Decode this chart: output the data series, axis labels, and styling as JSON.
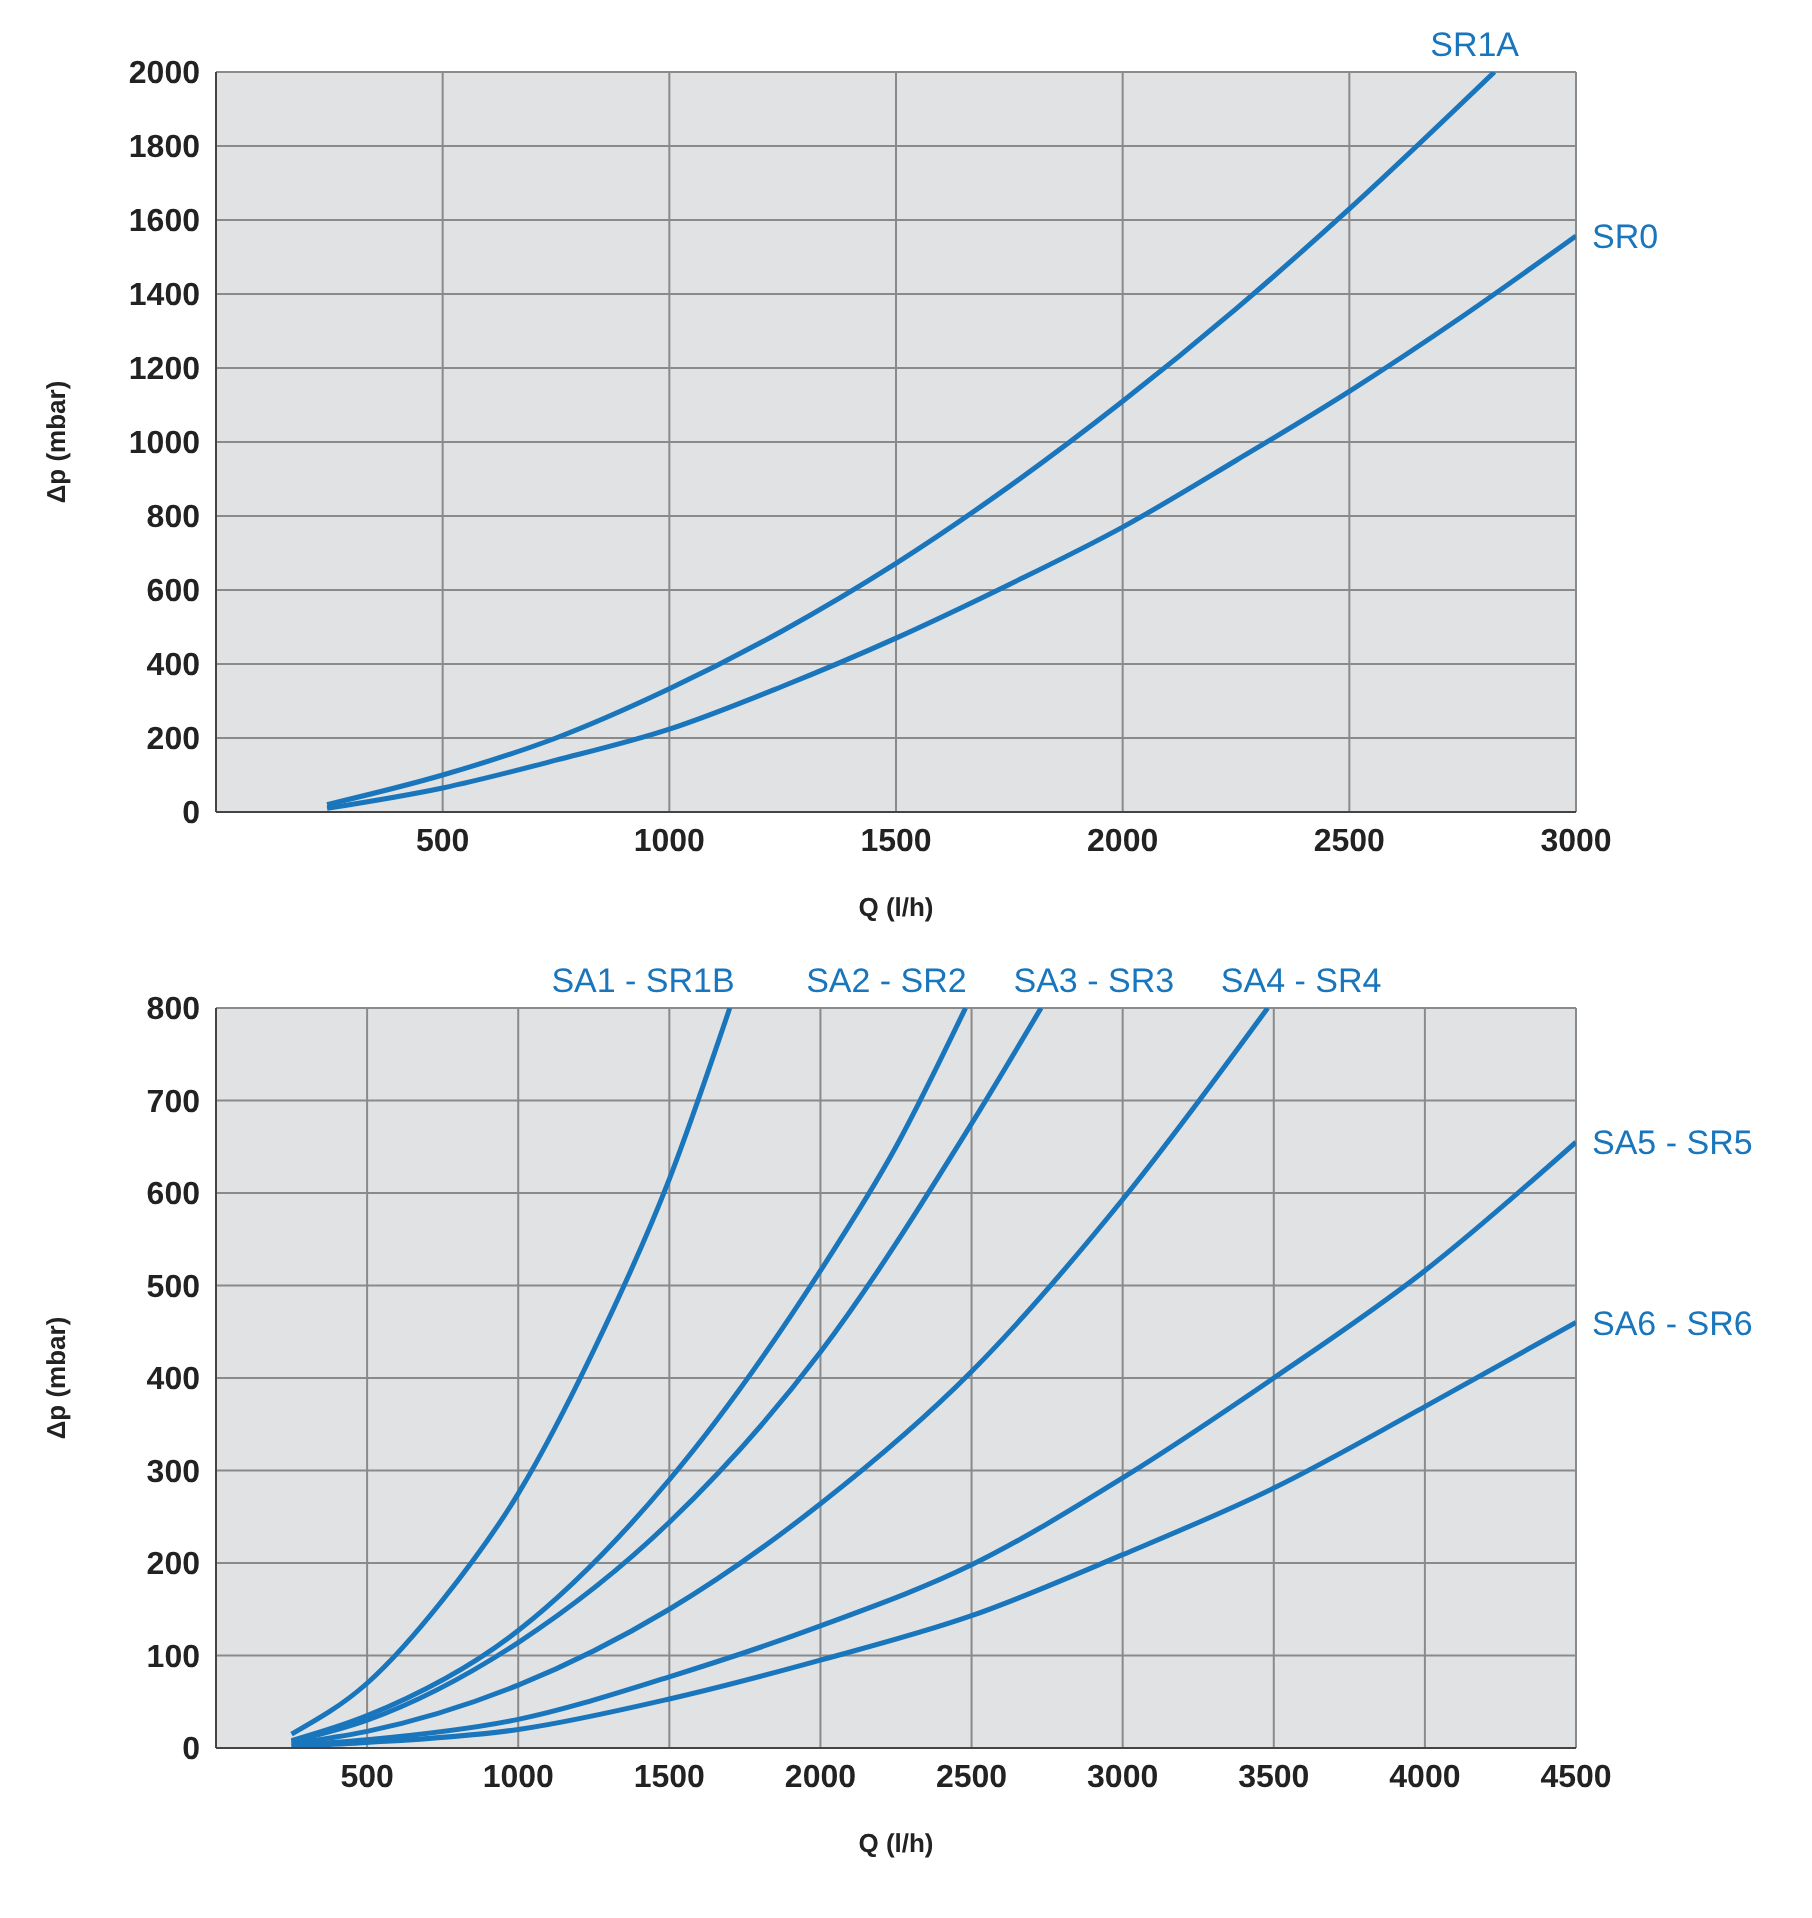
{
  "chart_data": [
    {
      "type": "line",
      "xlabel": "Q (l/h)",
      "ylabel": "Δp (mbar)",
      "xlim": [
        0,
        3000
      ],
      "xticks": [
        500,
        1000,
        1500,
        2000,
        2500,
        3000
      ],
      "ylim": [
        0,
        2000
      ],
      "yticks": [
        0,
        200,
        400,
        600,
        800,
        1000,
        1200,
        1400,
        1600,
        1800,
        2000
      ],
      "grid": true,
      "legend": false,
      "marker": "none",
      "series": [
        {
          "name": "SR1A",
          "color": "#1a76bc",
          "x": [
            245,
            500,
            750,
            1000,
            1250,
            1500,
            1750,
            2000,
            2250,
            2500,
            2820
          ],
          "values": [
            20,
            100,
            200,
            333,
            490,
            672,
            880,
            1110,
            1360,
            1630,
            2000
          ]
        },
        {
          "name": "SR0",
          "color": "#1a76bc",
          "x": [
            245,
            500,
            750,
            1000,
            1250,
            1500,
            1750,
            2000,
            2250,
            2500,
            2750,
            3000
          ],
          "values": [
            10,
            65,
            140,
            224,
            340,
            470,
            615,
            770,
            950,
            1137,
            1340,
            1557
          ]
        }
      ]
    },
    {
      "type": "line",
      "xlabel": "Q (l/h)",
      "ylabel": "Δp (mbar)",
      "xlim": [
        0,
        4500
      ],
      "xticks": [
        500,
        1000,
        1500,
        2000,
        2500,
        3000,
        3500,
        4000,
        4500
      ],
      "ylim": [
        0,
        800
      ],
      "yticks": [
        0,
        100,
        200,
        300,
        400,
        500,
        600,
        700,
        800
      ],
      "grid": true,
      "legend": false,
      "marker": "none",
      "series": [
        {
          "name": "SA1 - SR1B",
          "color": "#1a76bc",
          "x": [
            250,
            500,
            750,
            1000,
            1250,
            1500,
            1700
          ],
          "values": [
            15,
            70,
            160,
            275,
            430,
            615,
            800
          ]
        },
        {
          "name": "SA2 - SR2",
          "color": "#1a76bc",
          "x": [
            250,
            500,
            1000,
            1500,
            2000,
            2250,
            2480
          ],
          "values": [
            8,
            35,
            127,
            290,
            516,
            650,
            800
          ]
        },
        {
          "name": "SA3 - SR3",
          "color": "#1a76bc",
          "x": [
            250,
            500,
            1000,
            1500,
            2000,
            2500,
            2730
          ],
          "values": [
            7,
            30,
            114,
            244,
            428,
            675,
            800
          ]
        },
        {
          "name": "SA4 - SR4",
          "color": "#1a76bc",
          "x": [
            250,
            500,
            1000,
            1500,
            2000,
            2500,
            3000,
            3480
          ],
          "values": [
            5,
            18,
            68,
            150,
            264,
            407,
            593,
            800
          ]
        },
        {
          "name": "SA5 - SR5",
          "color": "#1a76bc",
          "x": [
            250,
            500,
            1000,
            1500,
            2000,
            2500,
            3000,
            3500,
            4000,
            4500
          ],
          "values": [
            3,
            9,
            31,
            77,
            132,
            198,
            292,
            400,
            516,
            655
          ]
        },
        {
          "name": "SA6 - SR6",
          "color": "#1a76bc",
          "x": [
            250,
            500,
            1000,
            1500,
            2000,
            2500,
            3000,
            3500,
            4000,
            4500
          ],
          "values": [
            2,
            6,
            20,
            53,
            95,
            143,
            209,
            281,
            369,
            460
          ]
        }
      ]
    }
  ]
}
